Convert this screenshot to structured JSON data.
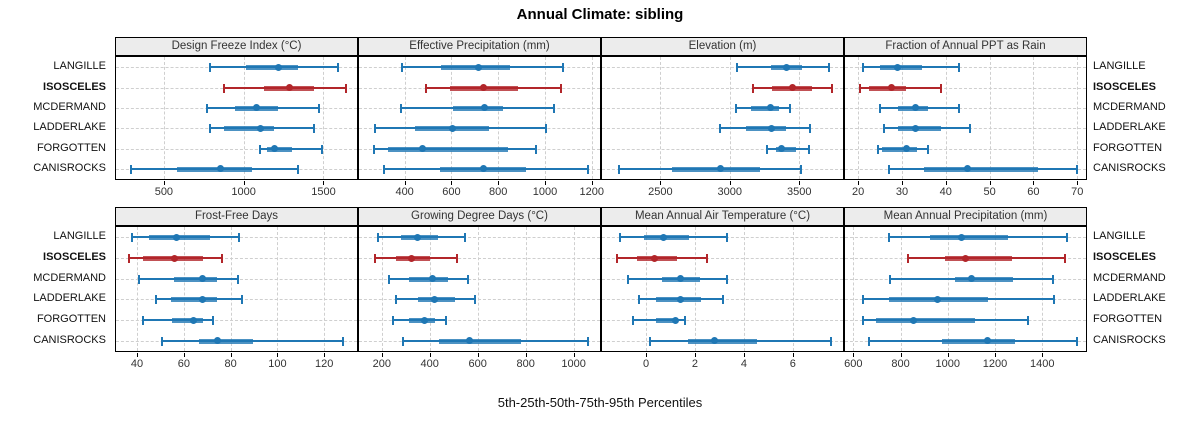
{
  "title": "Annual Climate: sibling",
  "caption": "5th-25th-50th-75th-95th Percentiles",
  "sites": [
    "LANGILLE",
    "ISOSCELES",
    "MCDERMAND",
    "LADDERLAKE",
    "FORGOTTEN",
    "CANISROCKS"
  ],
  "highlight_site": "ISOSCELES",
  "percentiles": [
    5,
    25,
    50,
    75,
    95
  ],
  "colors": {
    "series": "#1f77b4",
    "highlight": "#b2262a",
    "header_bg": "#ececec",
    "grid": "#cfcfcf",
    "border": "#000000"
  },
  "chart_data": [
    {
      "type": "interval",
      "title": "Design Freeze Index (°C)",
      "xlim": [
        200,
        1710
      ],
      "ticks": [
        500,
        1000,
        1500
      ],
      "series": [
        {
          "name": "LANGILLE",
          "values": [
            790,
            1015,
            1220,
            1340,
            1590
          ]
        },
        {
          "name": "ISOSCELES",
          "values": [
            875,
            1125,
            1290,
            1440,
            1640
          ]
        },
        {
          "name": "MCDERMAND",
          "values": [
            770,
            945,
            1080,
            1215,
            1475
          ]
        },
        {
          "name": "LADDERLAKE",
          "values": [
            790,
            875,
            1105,
            1190,
            1440
          ]
        },
        {
          "name": "FORGOTTEN",
          "values": [
            1100,
            1145,
            1190,
            1305,
            1490
          ]
        },
        {
          "name": "CANISROCKS",
          "values": [
            295,
            580,
            855,
            1055,
            1340
          ]
        }
      ]
    },
    {
      "type": "interval",
      "title": "Effective Precipitation (mm)",
      "xlim": [
        205,
        1235
      ],
      "ticks": [
        400,
        600,
        800,
        1000,
        1200
      ],
      "series": [
        {
          "name": "LANGILLE",
          "values": [
            390,
            555,
            715,
            850,
            1075
          ]
        },
        {
          "name": "ISOSCELES",
          "values": [
            490,
            595,
            735,
            885,
            1070
          ]
        },
        {
          "name": "MCDERMAND",
          "values": [
            385,
            605,
            740,
            820,
            1040
          ]
        },
        {
          "name": "LADDERLAKE",
          "values": [
            275,
            445,
            605,
            760,
            1005
          ]
        },
        {
          "name": "FORGOTTEN",
          "values": [
            270,
            330,
            475,
            840,
            960
          ]
        },
        {
          "name": "CANISROCKS",
          "values": [
            310,
            550,
            735,
            920,
            1185
          ]
        }
      ]
    },
    {
      "type": "interval",
      "title": "Elevation (m)",
      "xlim": [
        2080,
        3815
      ],
      "ticks": [
        2500,
        3000,
        3500
      ],
      "series": [
        {
          "name": "LANGILLE",
          "values": [
            3055,
            3300,
            3405,
            3520,
            3715
          ]
        },
        {
          "name": "ISOSCELES",
          "values": [
            3165,
            3305,
            3450,
            3595,
            3735
          ]
        },
        {
          "name": "MCDERMAND",
          "values": [
            3045,
            3155,
            3295,
            3355,
            3435
          ]
        },
        {
          "name": "LADDERLAKE",
          "values": [
            2930,
            3120,
            3300,
            3405,
            3580
          ]
        },
        {
          "name": "FORGOTTEN",
          "values": [
            3265,
            3335,
            3370,
            3480,
            3570
          ]
        },
        {
          "name": "CANISROCKS",
          "values": [
            2200,
            2585,
            2930,
            3215,
            3515
          ]
        }
      ]
    },
    {
      "type": "interval",
      "title": "Fraction of Annual PPT as Rain",
      "xlim": [
        17,
        72
      ],
      "ticks": [
        20,
        30,
        40,
        50,
        60,
        70
      ],
      "series": [
        {
          "name": "LANGILLE",
          "values": [
            21,
            25,
            29,
            34.5,
            43
          ]
        },
        {
          "name": "ISOSCELES",
          "values": [
            20.5,
            22.5,
            27.5,
            31,
            39
          ]
        },
        {
          "name": "MCDERMAND",
          "values": [
            25,
            29,
            33,
            36,
            43
          ]
        },
        {
          "name": "LADDERLAKE",
          "values": [
            26,
            29,
            33,
            39,
            45.5
          ]
        },
        {
          "name": "FORGOTTEN",
          "values": [
            24.5,
            25.5,
            31,
            33.5,
            36
          ]
        },
        {
          "name": "CANISROCKS",
          "values": [
            27,
            35,
            45,
            61,
            70
          ]
        }
      ]
    },
    {
      "type": "interval",
      "title": "Frost-Free Days",
      "xlim": [
        31,
        134
      ],
      "ticks": [
        40,
        60,
        80,
        100,
        120
      ],
      "series": [
        {
          "name": "LANGILLE",
          "values": [
            38,
            45,
            57,
            71,
            83.5
          ]
        },
        {
          "name": "ISOSCELES",
          "values": [
            36.5,
            42.5,
            56,
            68,
            76.5
          ]
        },
        {
          "name": "MCDERMAND",
          "values": [
            41,
            56,
            68,
            74,
            83
          ]
        },
        {
          "name": "LADDERLAKE",
          "values": [
            48,
            54.5,
            68,
            74,
            85
          ]
        },
        {
          "name": "FORGOTTEN",
          "values": [
            42.5,
            55,
            64,
            68,
            72.5
          ]
        },
        {
          "name": "CANISROCKS",
          "values": [
            50.5,
            66.5,
            74.5,
            89.5,
            128
          ]
        }
      ]
    },
    {
      "type": "interval",
      "title": "Growing Degree Days (°C)",
      "xlim": [
        105,
        1110
      ],
      "ticks": [
        200,
        400,
        600,
        800,
        1000
      ],
      "series": [
        {
          "name": "LANGILLE",
          "values": [
            183,
            280,
            350,
            435,
            548
          ]
        },
        {
          "name": "ISOSCELES",
          "values": [
            170,
            258,
            325,
            403,
            515
          ]
        },
        {
          "name": "MCDERMAND",
          "values": [
            230,
            312,
            411,
            478,
            560
          ]
        },
        {
          "name": "LADDERLAKE",
          "values": [
            258,
            353,
            420,
            507,
            590
          ]
        },
        {
          "name": "FORGOTTEN",
          "values": [
            246,
            312,
            378,
            424,
            469
          ]
        },
        {
          "name": "CANISROCKS",
          "values": [
            287,
            440,
            565,
            780,
            1058
          ]
        }
      ]
    },
    {
      "type": "interval",
      "title": "Mean Annual Air Temperature (°C)",
      "xlim": [
        -1.8,
        8.05
      ],
      "ticks": [
        0,
        2,
        4,
        6
      ],
      "series": [
        {
          "name": "LANGILLE",
          "values": [
            -1.05,
            -0.1,
            0.7,
            1.75,
            3.3
          ]
        },
        {
          "name": "ISOSCELES",
          "values": [
            -1.2,
            -0.35,
            0.35,
            1.25,
            2.5
          ]
        },
        {
          "name": "MCDERMAND",
          "values": [
            -0.75,
            0.65,
            1.4,
            2.2,
            3.3
          ]
        },
        {
          "name": "LADDERLAKE",
          "values": [
            -0.3,
            0.4,
            1.4,
            2.25,
            3.15
          ]
        },
        {
          "name": "FORGOTTEN",
          "values": [
            -0.55,
            0.4,
            1.2,
            1.3,
            1.6
          ]
        },
        {
          "name": "CANISROCKS",
          "values": [
            0.15,
            1.7,
            2.8,
            4.55,
            7.55
          ]
        }
      ]
    },
    {
      "type": "interval",
      "title": "Mean Annual Precipitation (mm)",
      "xlim": [
        565,
        1585
      ],
      "ticks": [
        600,
        800,
        1000,
        1200,
        1400
      ],
      "series": [
        {
          "name": "LANGILLE",
          "values": [
            750,
            925,
            1060,
            1255,
            1505
          ]
        },
        {
          "name": "ISOSCELES",
          "values": [
            830,
            990,
            1075,
            1270,
            1495
          ]
        },
        {
          "name": "MCDERMAND",
          "values": [
            755,
            1030,
            1100,
            1275,
            1445
          ]
        },
        {
          "name": "LADDERLAKE",
          "values": [
            640,
            750,
            955,
            1170,
            1450
          ]
        },
        {
          "name": "FORGOTTEN",
          "values": [
            640,
            695,
            855,
            1115,
            1340
          ]
        },
        {
          "name": "CANISROCKS",
          "values": [
            665,
            975,
            1170,
            1285,
            1545
          ]
        }
      ]
    }
  ]
}
